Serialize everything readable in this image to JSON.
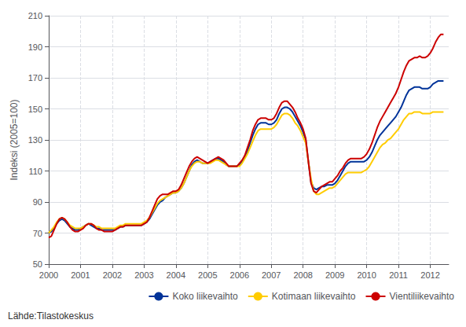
{
  "chart_data": {
    "type": "line",
    "ylabel": "Indeksi (2005=100)",
    "annotations": [
      "Lähde:Tilastokeskus"
    ],
    "xlim": [
      2000.0,
      2012.58
    ],
    "xticks": [
      2000,
      2001,
      2002,
      2003,
      2004,
      2005,
      2006,
      2007,
      2008,
      2009,
      2010,
      2011,
      2012
    ],
    "ylim": [
      50,
      210
    ],
    "yticks": [
      50,
      70,
      90,
      110,
      130,
      150,
      170,
      190,
      210
    ],
    "grid": true,
    "legend": "lower right",
    "x": [
      2000,
      2000.083333,
      2000.166667,
      2000.25,
      2000.333333,
      2000.416667,
      2000.5,
      2000.583333,
      2000.666667,
      2000.75,
      2000.833333,
      2000.916667,
      2001,
      2001.083333,
      2001.166667,
      2001.25,
      2001.333333,
      2001.416667,
      2001.5,
      2001.583333,
      2001.666667,
      2001.75,
      2001.833333,
      2001.916667,
      2002,
      2002.083333,
      2002.166667,
      2002.25,
      2002.333333,
      2002.416667,
      2002.5,
      2002.583333,
      2002.666667,
      2002.75,
      2002.833333,
      2002.916667,
      2003,
      2003.083333,
      2003.166667,
      2003.25,
      2003.333333,
      2003.416667,
      2003.5,
      2003.583333,
      2003.666667,
      2003.75,
      2003.833333,
      2003.916667,
      2004,
      2004.083333,
      2004.166667,
      2004.25,
      2004.333333,
      2004.416667,
      2004.5,
      2004.583333,
      2004.666667,
      2004.75,
      2004.833333,
      2004.916667,
      2005,
      2005.083333,
      2005.166667,
      2005.25,
      2005.333333,
      2005.416667,
      2005.5,
      2005.583333,
      2005.666667,
      2005.75,
      2005.833333,
      2005.916667,
      2006,
      2006.083333,
      2006.166667,
      2006.25,
      2006.333333,
      2006.416667,
      2006.5,
      2006.583333,
      2006.666667,
      2006.75,
      2006.833333,
      2006.916667,
      2007,
      2007.083333,
      2007.166667,
      2007.25,
      2007.333333,
      2007.416667,
      2007.5,
      2007.583333,
      2007.666667,
      2007.75,
      2007.833333,
      2007.916667,
      2008,
      2008.083333,
      2008.166667,
      2008.25,
      2008.333333,
      2008.416667,
      2008.5,
      2008.583333,
      2008.666667,
      2008.75,
      2008.833333,
      2008.916667,
      2009,
      2009.083333,
      2009.166667,
      2009.25,
      2009.333333,
      2009.416667,
      2009.5,
      2009.583333,
      2009.666667,
      2009.75,
      2009.833333,
      2009.916667,
      2010,
      2010.083333,
      2010.166667,
      2010.25,
      2010.333333,
      2010.416667,
      2010.5,
      2010.583333,
      2010.666667,
      2010.75,
      2010.833333,
      2010.916667,
      2011,
      2011.083333,
      2011.166667,
      2011.25,
      2011.333333,
      2011.416667,
      2011.5,
      2011.583333,
      2011.666667,
      2011.75,
      2011.833333,
      2011.916667,
      2012,
      2012.083333,
      2012.166667,
      2012.25,
      2012.333333,
      2012.416667
    ],
    "series": [
      {
        "name": "Koko liikevaihto",
        "color": "#003399",
        "values": [
          70,
          71,
          73,
          76,
          78,
          79,
          78,
          76,
          74,
          73,
          72,
          72,
          73,
          74,
          75,
          76,
          75,
          74,
          73,
          73,
          72,
          72,
          72,
          72,
          72,
          72,
          73,
          74,
          74,
          75,
          75,
          75,
          75,
          75,
          75,
          75,
          76,
          77,
          79,
          82,
          85,
          88,
          90,
          91,
          93,
          94,
          95,
          96,
          96,
          97,
          99,
          102,
          106,
          110,
          114,
          116,
          117,
          116,
          115,
          115,
          115,
          116,
          117,
          118,
          118,
          117,
          116,
          114,
          113,
          113,
          113,
          113,
          114,
          116,
          119,
          123,
          128,
          133,
          137,
          140,
          141,
          141,
          141,
          140,
          140,
          141,
          143,
          147,
          150,
          151,
          151,
          150,
          148,
          145,
          142,
          139,
          135,
          130,
          116,
          103,
          99,
          98,
          99,
          100,
          100,
          101,
          101,
          101,
          102,
          104,
          107,
          110,
          113,
          115,
          116,
          116,
          116,
          116,
          116,
          116,
          117,
          119,
          122,
          126,
          130,
          133,
          135,
          137,
          139,
          141,
          143,
          145,
          148,
          151,
          155,
          159,
          162,
          163,
          164,
          164,
          164,
          163,
          163,
          163,
          164,
          166,
          167,
          168,
          168,
          168
        ]
      },
      {
        "name": "Kotimaan liikevaihto",
        "color": "#ffcc00",
        "values": [
          70,
          72,
          74,
          77,
          79,
          80,
          79,
          77,
          75,
          74,
          73,
          73,
          73,
          74,
          75,
          76,
          76,
          75,
          74,
          74,
          73,
          73,
          73,
          73,
          73,
          73,
          74,
          75,
          75,
          76,
          76,
          76,
          76,
          76,
          76,
          76,
          77,
          78,
          80,
          83,
          86,
          89,
          91,
          92,
          93,
          94,
          95,
          96,
          96,
          97,
          99,
          102,
          106,
          110,
          113,
          115,
          116,
          116,
          115,
          115,
          115,
          115,
          116,
          117,
          117,
          116,
          115,
          114,
          113,
          113,
          113,
          113,
          113,
          115,
          118,
          121,
          125,
          129,
          133,
          136,
          137,
          137,
          137,
          137,
          137,
          138,
          140,
          143,
          146,
          147,
          147,
          146,
          144,
          141,
          139,
          136,
          132,
          128,
          116,
          105,
          97,
          95,
          95,
          96,
          97,
          98,
          99,
          99,
          100,
          102,
          104,
          106,
          108,
          109,
          109,
          109,
          109,
          109,
          109,
          110,
          111,
          113,
          116,
          119,
          122,
          125,
          127,
          128,
          130,
          131,
          133,
          135,
          137,
          140,
          143,
          145,
          147,
          147,
          148,
          148,
          148,
          147,
          147,
          147,
          147,
          148,
          148,
          148,
          148,
          148
        ]
      },
      {
        "name": "Vientiliikevaihto",
        "color": "#cc0000",
        "values": [
          67,
          68,
          72,
          76,
          79,
          80,
          79,
          77,
          74,
          72,
          71,
          71,
          72,
          73,
          75,
          76,
          76,
          75,
          73,
          72,
          72,
          71,
          71,
          71,
          71,
          72,
          73,
          74,
          74,
          75,
          75,
          75,
          75,
          75,
          75,
          75,
          76,
          77,
          80,
          84,
          88,
          92,
          94,
          95,
          95,
          95,
          96,
          97,
          97,
          98,
          101,
          105,
          109,
          113,
          116,
          118,
          119,
          118,
          117,
          116,
          115,
          116,
          117,
          118,
          119,
          118,
          117,
          115,
          113,
          113,
          113,
          113,
          115,
          117,
          120,
          125,
          130,
          136,
          140,
          143,
          144,
          144,
          144,
          143,
          143,
          144,
          147,
          151,
          154,
          155,
          155,
          153,
          151,
          148,
          144,
          141,
          137,
          131,
          116,
          102,
          97,
          96,
          98,
          100,
          101,
          102,
          103,
          103,
          105,
          107,
          110,
          112,
          115,
          117,
          118,
          118,
          118,
          118,
          118,
          119,
          121,
          124,
          128,
          133,
          138,
          142,
          145,
          148,
          151,
          154,
          157,
          160,
          164,
          169,
          174,
          178,
          181,
          182,
          183,
          183,
          184,
          183,
          183,
          184,
          186,
          189,
          193,
          196,
          198,
          198
        ]
      }
    ]
  }
}
